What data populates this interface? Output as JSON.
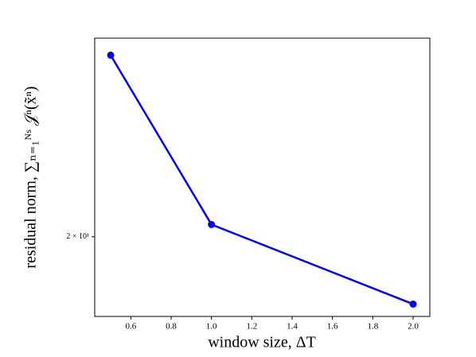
{
  "chart_data": {
    "type": "line",
    "x_label": "window size, ΔT",
    "y_label": "residual norm, ∑ₙ₌₁ᴺˢ 𝒥ⁿ(x̃ⁿ)",
    "x": [
      0.5,
      1.0,
      2.0
    ],
    "series": [
      {
        "color": "#0000ff",
        "values": [
          31,
          20.6,
          17
        ]
      }
    ],
    "xlim": [
      0.421,
      2.083
    ],
    "ylim": [
      16.5,
      32.3
    ],
    "xticks": [
      0.6,
      0.8,
      {
        "value": 1.0,
        "label": "1.0"
      },
      1.2,
      1.4,
      1.6,
      1.8,
      {
        "value": 2.0,
        "label": "2.0"
      }
    ],
    "yticks": [
      {
        "value": 20,
        "label": "2 × 10¹"
      }
    ],
    "yscale": "log",
    "grid": false
  }
}
